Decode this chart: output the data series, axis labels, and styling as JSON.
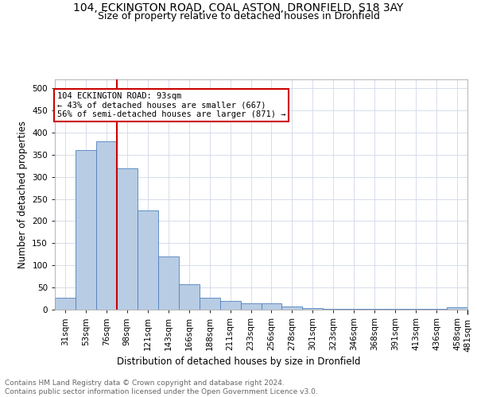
{
  "title1": "104, ECKINGTON ROAD, COAL ASTON, DRONFIELD, S18 3AY",
  "title2": "Size of property relative to detached houses in Dronfield",
  "xlabel": "Distribution of detached houses by size in Dronfield",
  "ylabel": "Number of detached properties",
  "bar_values": [
    27,
    360,
    380,
    320,
    225,
    120,
    58,
    27,
    20,
    15,
    15,
    8,
    4,
    2,
    2,
    1,
    1,
    1,
    1,
    5
  ],
  "bar_labels": [
    "31sqm",
    "53sqm",
    "76sqm",
    "98sqm",
    "121sqm",
    "143sqm",
    "166sqm",
    "188sqm",
    "211sqm",
    "233sqm",
    "256sqm",
    "278sqm",
    "301sqm",
    "323sqm",
    "346sqm",
    "368sqm",
    "391sqm",
    "413sqm",
    "436sqm",
    "458sqm",
    "481sqm"
  ],
  "bar_color": "#b8cce4",
  "bar_edge_color": "#4f81bd",
  "grid_color": "#d0d8e8",
  "vline_color": "#cc0000",
  "annotation_text": "104 ECKINGTON ROAD: 93sqm\n← 43% of detached houses are smaller (667)\n56% of semi-detached houses are larger (871) →",
  "annotation_box_color": "#cc0000",
  "ylim": [
    0,
    520
  ],
  "yticks": [
    0,
    50,
    100,
    150,
    200,
    250,
    300,
    350,
    400,
    450,
    500
  ],
  "footer_text": "Contains HM Land Registry data © Crown copyright and database right 2024.\nContains public sector information licensed under the Open Government Licence v3.0.",
  "title1_fontsize": 10,
  "title2_fontsize": 9,
  "tick_fontsize": 7.5,
  "ylabel_fontsize": 8.5,
  "xlabel_fontsize": 8.5,
  "footer_fontsize": 6.5
}
